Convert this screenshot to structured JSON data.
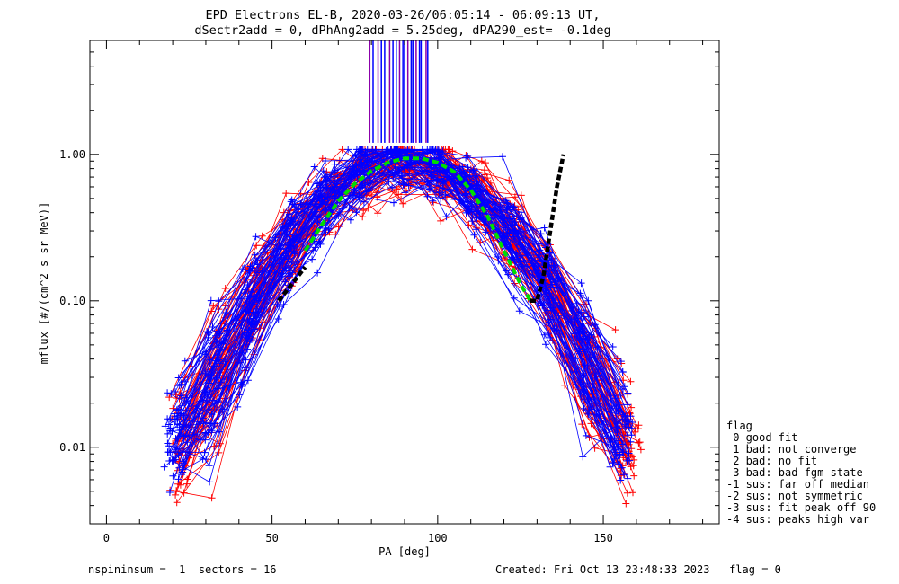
{
  "chart_data": {
    "type": "scatter",
    "title": "EPD Electrons EL-B, 2020-03-26/06:05:14 - 06:09:13 UT,",
    "subtitle": "dSectr2add = 0, dPhAng2add = 5.25deg, dPA290_est=  -0.1deg",
    "xlabel": "PA [deg]",
    "ylabel": "mflux [#/(cm^2 s sr MeV)]",
    "xlim": [
      -5,
      185
    ],
    "ylim": [
      0.003,
      6
    ],
    "yscale": "log",
    "x_ticks": [
      0,
      50,
      100,
      150
    ],
    "x_tick_labels": [
      "0",
      "50",
      "100",
      "150"
    ],
    "y_ticks": [
      0.01,
      0.1,
      1.0
    ],
    "y_tick_labels": [
      "0.01",
      "0.10",
      "1.00"
    ],
    "colors": {
      "series_a": "#ff0000",
      "series_b": "#0000ff",
      "fit": "#00dd00",
      "aux": "#000000",
      "bars": "#8b00aa"
    },
    "series": [
      {
        "color": "#0000ff",
        "marker": "plus",
        "count": 64,
        "sample_profile": {
          "x": [
            21,
            30,
            42,
            55,
            68,
            80,
            91,
            103,
            115,
            126,
            137,
            148,
            157
          ],
          "y": [
            0.014,
            0.03,
            0.065,
            0.16,
            0.42,
            0.78,
            0.9,
            0.7,
            0.32,
            0.12,
            0.045,
            0.022,
            0.015
          ]
        }
      },
      {
        "color": "#ff0000",
        "marker": "plus",
        "count": 58,
        "sample_profile": {
          "x": [
            26,
            35,
            46,
            58,
            70,
            82,
            93,
            104,
            116,
            127,
            139,
            150,
            159
          ],
          "y": [
            0.012,
            0.025,
            0.055,
            0.13,
            0.38,
            0.75,
            0.88,
            0.66,
            0.28,
            0.08,
            0.03,
            0.018,
            0.014
          ]
        }
      },
      {
        "name": "fit",
        "color": "#00dd00",
        "style": "dashed",
        "x": [
          60,
          65,
          70,
          75,
          80,
          85,
          90,
          95,
          100,
          105,
          110,
          115,
          120,
          125,
          128
        ],
        "y": [
          0.22,
          0.33,
          0.48,
          0.63,
          0.77,
          0.88,
          0.94,
          0.94,
          0.88,
          0.76,
          0.57,
          0.38,
          0.22,
          0.13,
          0.1
        ]
      },
      {
        "name": "aux",
        "color": "#000000",
        "style": "dashed",
        "x": [
          52,
          56,
          60
        ],
        "y": [
          0.1,
          0.13,
          0.17
        ]
      },
      {
        "name": "aux-right",
        "color": "#000000",
        "style": "dashed",
        "x": [
          128,
          130,
          132,
          134,
          136,
          138
        ],
        "y": [
          0.1,
          0.1,
          0.15,
          0.3,
          0.6,
          1.0
        ]
      }
    ],
    "vertical_lines": {
      "y_low": 1.2,
      "y_high": 6,
      "x_purple": [
        79.5,
        82,
        85.5,
        88.5,
        91,
        93.5,
        96.5
      ],
      "x_blue": [
        80.5,
        83,
        84,
        86.5,
        87.5,
        89.5,
        90,
        92,
        92.5,
        94.5,
        95,
        97
      ]
    },
    "grid": false,
    "legend": "none"
  },
  "footer": {
    "left": "nspininsum =  1  sectors = 16",
    "right": "Created: Fri Oct 13 23:48:33 2023   flag = 0"
  },
  "flag_legend": {
    "title": "flag",
    "items": [
      " 0 good fit",
      " 1 bad: not converge",
      " 2 bad: no fit",
      " 3 bad: bad fgm state",
      "-1 sus: far off median",
      "-2 sus: not symmetric",
      "-3 sus: fit peak off 90",
      "-4 sus: peaks high var"
    ]
  }
}
